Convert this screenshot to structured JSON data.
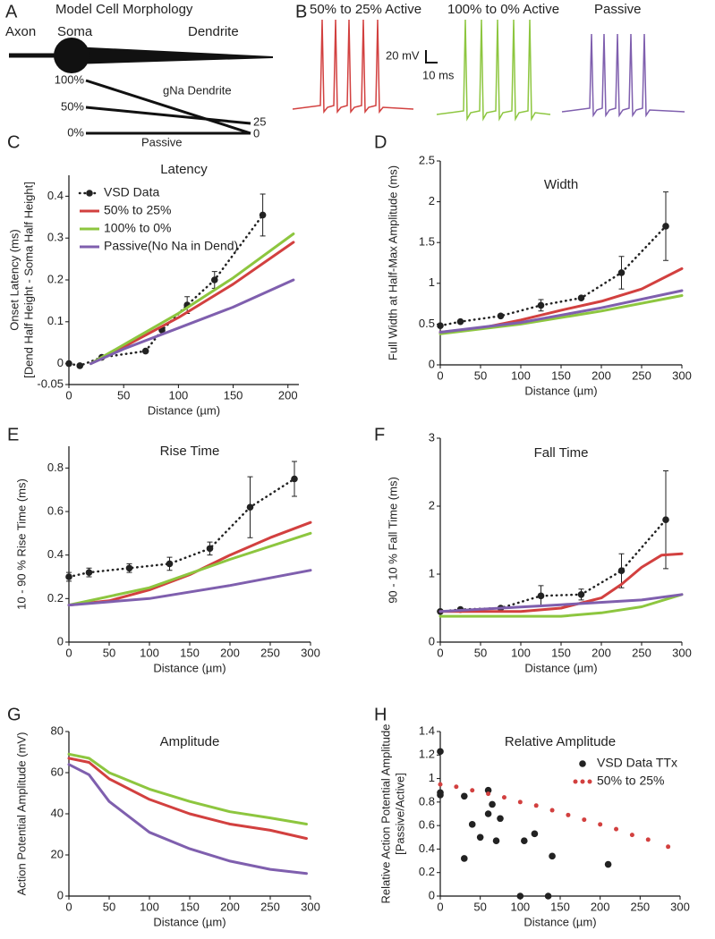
{
  "morphology": {
    "panel": "A",
    "title": "Model Cell Morphology",
    "axon": "Axon",
    "soma": "Soma",
    "dendrite": "Dendrite",
    "left_labels": [
      "100%",
      "50%",
      "0%"
    ],
    "gna_label": "gNa Dendrite",
    "right_labels": [
      "25",
      "0"
    ],
    "passive": "Passive"
  },
  "traces": {
    "panel": "B",
    "labels": [
      "50% to 25% Active",
      "100% to 0% Active",
      "Passive"
    ],
    "scale_v": "20 mV",
    "scale_t": "10 ms"
  },
  "chart_data": [
    {
      "type": "line",
      "panel": "C",
      "title": "Latency",
      "xlabel": "Distance (µm)",
      "ylabel": [
        "Onset Latency (ms)",
        "[Dend Half Height - Soma Half Height]"
      ],
      "xlim": [
        0,
        210
      ],
      "xticks": [
        0,
        50,
        100,
        150,
        200
      ],
      "ylim": [
        -0.05,
        0.45
      ],
      "yticks": [
        -0.05,
        0,
        0.1,
        0.2,
        0.3,
        0.4
      ],
      "legend": "upper left",
      "series": [
        {
          "name": "VSD Data",
          "color": "#222222",
          "style": "dotted-markers",
          "x": [
            0,
            10,
            30,
            70,
            85,
            108,
            133,
            177
          ],
          "values": [
            0,
            -0.005,
            0.015,
            0.03,
            0.08,
            0.14,
            0.2,
            0.355
          ],
          "errors": [
            null,
            null,
            null,
            null,
            null,
            0.02,
            0.02,
            0.05
          ]
        },
        {
          "name": "50% to 25%",
          "color": "#d2403f",
          "style": "line",
          "x": [
            20,
            50,
            100,
            150,
            205
          ],
          "values": [
            0,
            0.04,
            0.11,
            0.19,
            0.29
          ]
        },
        {
          "name": "100% to 0%",
          "color": "#8dc63f",
          "style": "line",
          "x": [
            20,
            50,
            100,
            150,
            205
          ],
          "values": [
            0,
            0.045,
            0.12,
            0.205,
            0.31
          ]
        },
        {
          "name": "Passive(No Na in Dend)",
          "color": "#7f5fae",
          "style": "line",
          "x": [
            20,
            50,
            100,
            150,
            205
          ],
          "values": [
            0,
            0.035,
            0.085,
            0.135,
            0.2
          ]
        }
      ]
    },
    {
      "type": "line",
      "panel": "D",
      "title": "Width",
      "xlabel": "Distance (µm)",
      "ylabel": [
        "Full Width at Half-Max Amplitude  (ms)"
      ],
      "xlim": [
        0,
        300
      ],
      "xticks": [
        0,
        50,
        100,
        150,
        200,
        250,
        300
      ],
      "ylim": [
        0,
        2.5
      ],
      "yticks": [
        0,
        0.5,
        1,
        1.5,
        2,
        2.5
      ],
      "series": [
        {
          "color": "#222222",
          "style": "dotted-markers",
          "x": [
            0,
            25,
            75,
            125,
            175,
            225,
            280
          ],
          "values": [
            0.48,
            0.53,
            0.6,
            0.73,
            0.82,
            1.13,
            1.7
          ],
          "errors": [
            null,
            null,
            null,
            0.07,
            null,
            0.2,
            0.42
          ]
        },
        {
          "color": "#d2403f",
          "style": "line",
          "x": [
            0,
            50,
            100,
            150,
            200,
            250,
            300
          ],
          "values": [
            0.4,
            0.45,
            0.55,
            0.67,
            0.78,
            0.93,
            1.18
          ]
        },
        {
          "color": "#8dc63f",
          "style": "line",
          "x": [
            0,
            100,
            200,
            300
          ],
          "values": [
            0.38,
            0.5,
            0.66,
            0.85
          ]
        },
        {
          "color": "#7f5fae",
          "style": "line",
          "x": [
            0,
            100,
            200,
            300
          ],
          "values": [
            0.4,
            0.52,
            0.7,
            0.91
          ]
        }
      ]
    },
    {
      "type": "line",
      "panel": "E",
      "title": "Rise Time",
      "xlabel": "Distance (µm)",
      "ylabel": [
        "10 - 90 %  Rise Time (ms)"
      ],
      "xlim": [
        0,
        300
      ],
      "xticks": [
        0,
        50,
        100,
        150,
        200,
        250,
        300
      ],
      "ylim": [
        0,
        0.9
      ],
      "yticks": [
        0,
        0.2,
        0.4,
        0.6,
        0.8
      ],
      "series": [
        {
          "color": "#222222",
          "style": "dotted-markers",
          "x": [
            0,
            25,
            75,
            125,
            175,
            225,
            280
          ],
          "values": [
            0.3,
            0.32,
            0.34,
            0.36,
            0.43,
            0.62,
            0.75
          ],
          "errors": [
            0.02,
            0.02,
            0.02,
            0.03,
            0.03,
            0.14,
            0.08
          ]
        },
        {
          "color": "#d2403f",
          "style": "line",
          "x": [
            0,
            50,
            100,
            150,
            200,
            250,
            300
          ],
          "values": [
            0.17,
            0.19,
            0.24,
            0.31,
            0.4,
            0.48,
            0.55
          ]
        },
        {
          "color": "#8dc63f",
          "style": "line",
          "x": [
            0,
            100,
            200,
            300
          ],
          "values": [
            0.17,
            0.25,
            0.38,
            0.5
          ]
        },
        {
          "color": "#7f5fae",
          "style": "line",
          "x": [
            0,
            100,
            200,
            300
          ],
          "values": [
            0.17,
            0.2,
            0.26,
            0.33
          ]
        }
      ]
    },
    {
      "type": "line",
      "panel": "F",
      "title": "Fall Time",
      "xlabel": "Distance (µm)",
      "ylabel": [
        "90 - 10 %  Fall Time (ms)"
      ],
      "xlim": [
        0,
        300
      ],
      "xticks": [
        0,
        50,
        100,
        150,
        200,
        250,
        300
      ],
      "ylim": [
        0,
        3
      ],
      "yticks": [
        0,
        1,
        2,
        3
      ],
      "series": [
        {
          "color": "#222222",
          "style": "dotted-markers",
          "x": [
            0,
            25,
            75,
            125,
            175,
            225,
            280
          ],
          "values": [
            0.45,
            0.48,
            0.5,
            0.68,
            0.7,
            1.05,
            1.8
          ],
          "errors": [
            null,
            null,
            null,
            0.15,
            0.08,
            0.25,
            0.72
          ]
        },
        {
          "color": "#d2403f",
          "style": "line",
          "x": [
            0,
            100,
            150,
            200,
            225,
            250,
            275,
            300
          ],
          "values": [
            0.45,
            0.45,
            0.5,
            0.65,
            0.85,
            1.1,
            1.28,
            1.3
          ]
        },
        {
          "color": "#8dc63f",
          "style": "line",
          "x": [
            0,
            150,
            200,
            250,
            300
          ],
          "values": [
            0.38,
            0.38,
            0.43,
            0.52,
            0.7
          ]
        },
        {
          "color": "#7f5fae",
          "style": "line",
          "x": [
            0,
            150,
            250,
            300
          ],
          "values": [
            0.45,
            0.55,
            0.62,
            0.7
          ]
        }
      ]
    },
    {
      "type": "line",
      "panel": "G",
      "title": "Amplitude",
      "xlabel": "Distance (µm)",
      "ylabel": [
        "Action Potential Amplitude (mV)"
      ],
      "xlim": [
        0,
        300
      ],
      "xticks": [
        0,
        50,
        100,
        150,
        200,
        250,
        300
      ],
      "ylim": [
        0,
        80
      ],
      "yticks": [
        0,
        20,
        40,
        60,
        80
      ],
      "series": [
        {
          "color": "#8dc63f",
          "style": "line",
          "x": [
            0,
            25,
            50,
            100,
            150,
            200,
            250,
            295
          ],
          "values": [
            69,
            67,
            60,
            52,
            46,
            41,
            38,
            35
          ]
        },
        {
          "color": "#d2403f",
          "style": "line",
          "x": [
            0,
            25,
            50,
            100,
            150,
            200,
            250,
            295
          ],
          "values": [
            67,
            65,
            57,
            47,
            40,
            35,
            32,
            28
          ]
        },
        {
          "color": "#7f5fae",
          "style": "line",
          "x": [
            0,
            25,
            50,
            100,
            150,
            200,
            250,
            295
          ],
          "values": [
            64,
            59,
            46,
            31,
            23,
            17,
            13,
            11
          ]
        }
      ]
    },
    {
      "type": "scatter",
      "panel": "H",
      "title": "Relative Amplitude",
      "xlabel": "Distance (µm)",
      "ylabel": [
        "Relative Action Potential Amplitude",
        "[Passive/Active]"
      ],
      "xlim": [
        0,
        300
      ],
      "xticks": [
        0,
        50,
        100,
        150,
        200,
        250,
        300
      ],
      "ylim": [
        0,
        1.4
      ],
      "yticks": [
        0,
        0.2,
        0.4,
        0.6,
        0.8,
        1,
        1.2,
        1.4
      ],
      "legend": "upper right",
      "series": [
        {
          "name": "VSD Data TTx",
          "color": "#222222",
          "style": "markers",
          "x": [
            0,
            0,
            0,
            30,
            30,
            40,
            50,
            60,
            60,
            65,
            75,
            70,
            100,
            105,
            118,
            135,
            140,
            210
          ],
          "values": [
            1.23,
            0.88,
            0.86,
            0.32,
            0.85,
            0.61,
            0.5,
            0.9,
            0.7,
            0.78,
            0.66,
            0.47,
            0,
            0.47,
            0.53,
            0,
            0.34,
            0.27
          ]
        },
        {
          "name": "50% to 25%",
          "color": "#d2403f",
          "style": "dots",
          "x": [
            0,
            20,
            40,
            60,
            80,
            100,
            120,
            140,
            160,
            180,
            200,
            220,
            240,
            260,
            285
          ],
          "values": [
            0.95,
            0.93,
            0.9,
            0.87,
            0.84,
            0.8,
            0.77,
            0.73,
            0.69,
            0.65,
            0.61,
            0.57,
            0.52,
            0.48,
            0.42
          ]
        }
      ]
    }
  ]
}
